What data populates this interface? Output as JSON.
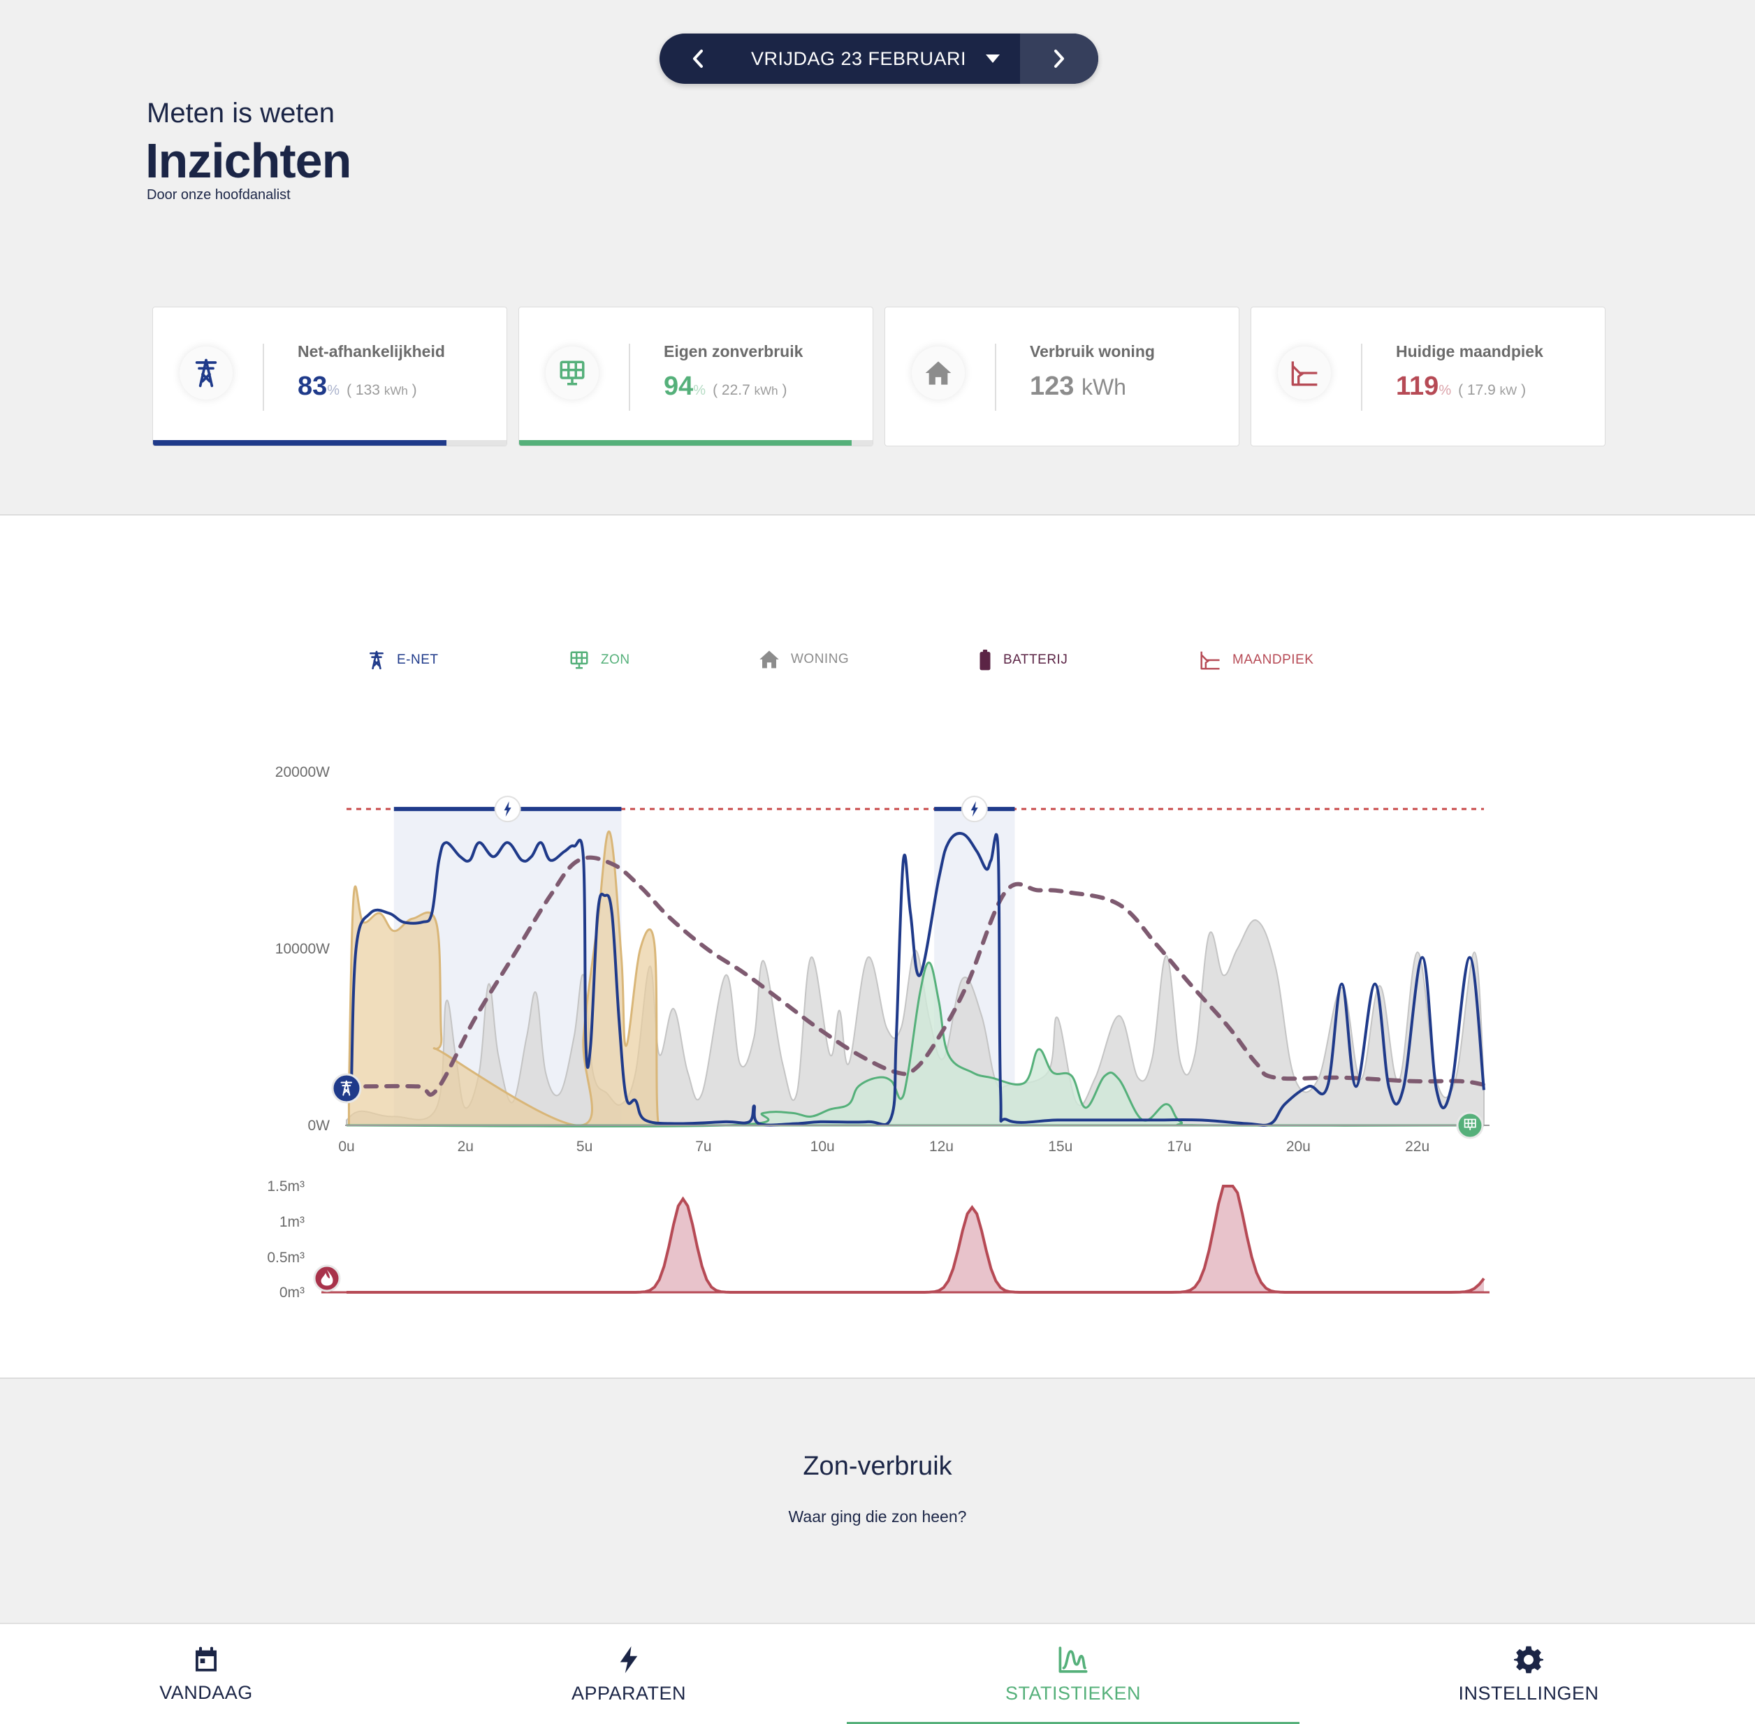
{
  "header": {
    "date_label": "VRIJDAG 23 FEBRUARI",
    "kicker": "Meten is weten",
    "title": "Inzichten",
    "subtitle": "Door onze hoofdanalist"
  },
  "cards": [
    {
      "name": "Net-afhankelijkheid",
      "value": "83",
      "unit": "%",
      "sub_open": "(",
      "sub_value": "133",
      "sub_unit": "kWh",
      "sub_close": ")",
      "progress": 0.83,
      "color": "#1f3a8a",
      "icon": "pylon-icon"
    },
    {
      "name": "Eigen zonverbruik",
      "value": "94",
      "unit": "%",
      "sub_open": "(",
      "sub_value": "22.7",
      "sub_unit": "kWh",
      "sub_close": ")",
      "progress": 0.94,
      "color": "#55b07a",
      "icon": "solar-panel-icon"
    },
    {
      "name": "Verbruik woning",
      "value": "123",
      "unit": "kWh",
      "color": "#8c8c8c",
      "icon": "house-icon"
    },
    {
      "name": "Huidige maandpiek",
      "value": "119",
      "unit": "%",
      "sub_open": "(",
      "sub_value": "17.9",
      "sub_unit": "kW",
      "sub_close": ")",
      "color": "#b64a55",
      "icon": "peak-chart-icon"
    }
  ],
  "legend": [
    {
      "label": "E-NET",
      "color": "#1f3a8a",
      "icon": "pylon-icon"
    },
    {
      "label": "ZON",
      "color": "#55b07a",
      "icon": "solar-panel-icon"
    },
    {
      "label": "WONING",
      "color": "#8c8c8c",
      "icon": "house-icon"
    },
    {
      "label": "BATTERIJ",
      "color": "#5b2445",
      "icon": "battery-icon"
    },
    {
      "label": "MAANDPIEK",
      "color": "#b64a55",
      "icon": "peak-chart-icon"
    }
  ],
  "chart_data": [
    {
      "type": "line",
      "ylabels": [
        "20000W",
        "10000W",
        "0W"
      ],
      "xlabels": [
        "0u",
        "2u",
        "5u",
        "7u",
        "10u",
        "12u",
        "15u",
        "17u",
        "20u",
        "22u"
      ],
      "ylim": [
        0,
        20000
      ],
      "xlim": [
        0,
        24
      ],
      "maandpiek": 17900,
      "peak_windows": [
        [
          1.0,
          5.8
        ],
        [
          12.4,
          14.1
        ]
      ],
      "series": [
        {
          "key": "enet",
          "color": "#1f3a8a",
          "points": [
            [
              0.1,
              2000
            ],
            [
              0.2,
              10000
            ],
            [
              0.5,
              12000
            ],
            [
              0.9,
              12000
            ],
            [
              1.2,
              11500
            ],
            [
              1.6,
              11500
            ],
            [
              1.8,
              12000
            ],
            [
              1.95,
              15000
            ],
            [
              2.1,
              16000
            ],
            [
              2.4,
              15200
            ],
            [
              2.6,
              15000
            ],
            [
              2.8,
              16000
            ],
            [
              3.1,
              15200
            ],
            [
              3.4,
              16000
            ],
            [
              3.7,
              15000
            ],
            [
              3.9,
              15200
            ],
            [
              4.1,
              16000
            ],
            [
              4.3,
              15000
            ],
            [
              4.6,
              15500
            ],
            [
              4.8,
              15800
            ],
            [
              5.0,
              15000
            ],
            [
              5.05,
              4500
            ],
            [
              5.15,
              4500
            ],
            [
              5.3,
              12000
            ],
            [
              5.45,
              13000
            ],
            [
              5.6,
              12000
            ],
            [
              5.75,
              6000
            ],
            [
              5.9,
              1600
            ],
            [
              6.1,
              1400
            ],
            [
              6.3,
              300
            ],
            [
              7.0,
              100
            ],
            [
              8.0,
              200
            ],
            [
              8.5,
              200
            ],
            [
              8.6,
              1100
            ],
            [
              8.7,
              100
            ],
            [
              9.5,
              100
            ],
            [
              10.0,
              200
            ],
            [
              11.0,
              200
            ],
            [
              11.5,
              500
            ],
            [
              11.6,
              5000
            ],
            [
              11.75,
              15000
            ],
            [
              11.9,
              12000
            ],
            [
              12.1,
              8500
            ],
            [
              12.5,
              14000
            ],
            [
              12.7,
              16000
            ],
            [
              13.0,
              16500
            ],
            [
              13.3,
              15500
            ],
            [
              13.5,
              14500
            ],
            [
              13.6,
              15000
            ],
            [
              13.75,
              15500
            ],
            [
              13.8,
              2000
            ],
            [
              13.95,
              300
            ],
            [
              15.0,
              300
            ],
            [
              16.0,
              300
            ],
            [
              17.0,
              300
            ],
            [
              18.0,
              300
            ],
            [
              19.0,
              100
            ],
            [
              19.5,
              100
            ],
            [
              19.8,
              1200
            ],
            [
              20.3,
              2200
            ],
            [
              20.7,
              2200
            ],
            [
              21.0,
              8000
            ],
            [
              21.3,
              2200
            ],
            [
              21.7,
              8000
            ],
            [
              22.0,
              2100
            ],
            [
              22.3,
              2100
            ],
            [
              22.7,
              9500
            ],
            [
              23.0,
              2000
            ],
            [
              23.3,
              2000
            ],
            [
              23.7,
              9500
            ],
            [
              24.0,
              2000
            ]
          ]
        },
        {
          "key": "zon",
          "color": "#55b07a",
          "points": [
            [
              0,
              0
            ],
            [
              8.0,
              0
            ],
            [
              8.8,
              700
            ],
            [
              9.4,
              700
            ],
            [
              9.8,
              500
            ],
            [
              10.2,
              900
            ],
            [
              10.6,
              1200
            ],
            [
              10.8,
              2200
            ],
            [
              11.2,
              2700
            ],
            [
              11.5,
              2500
            ],
            [
              11.7,
              1500
            ],
            [
              11.85,
              3000
            ],
            [
              12.1,
              7500
            ],
            [
              12.3,
              9200
            ],
            [
              12.5,
              7000
            ],
            [
              12.7,
              4000
            ],
            [
              13.2,
              3000
            ],
            [
              13.6,
              2700
            ],
            [
              14.3,
              2400
            ],
            [
              14.6,
              4300
            ],
            [
              14.9,
              3000
            ],
            [
              15.3,
              2800
            ],
            [
              15.6,
              1000
            ],
            [
              16.0,
              2800
            ],
            [
              16.3,
              2600
            ],
            [
              16.8,
              300
            ],
            [
              17.3,
              1200
            ],
            [
              17.6,
              200
            ],
            [
              18.2,
              0
            ],
            [
              24,
              0
            ]
          ]
        },
        {
          "key": "woning",
          "color": "#c8c8c8",
          "points": [
            [
              0,
              300
            ],
            [
              0.3,
              800
            ],
            [
              1.0,
              500
            ],
            [
              1.9,
              1000
            ],
            [
              2.1,
              7000
            ],
            [
              2.3,
              4000
            ],
            [
              2.5,
              1000
            ],
            [
              2.8,
              3000
            ],
            [
              3.0,
              8000
            ],
            [
              3.2,
              4000
            ],
            [
              3.5,
              1300
            ],
            [
              3.8,
              5000
            ],
            [
              4.0,
              7500
            ],
            [
              4.2,
              3000
            ],
            [
              4.5,
              1800
            ],
            [
              4.8,
              5000
            ],
            [
              5.0,
              8500
            ],
            [
              5.2,
              3000
            ],
            [
              5.5,
              1800
            ],
            [
              5.8,
              1200
            ],
            [
              6.1,
              3000
            ],
            [
              6.4,
              9000
            ],
            [
              6.6,
              4000
            ],
            [
              6.9,
              6600
            ],
            [
              7.2,
              3000
            ],
            [
              7.5,
              1800
            ],
            [
              8.0,
              8500
            ],
            [
              8.3,
              3500
            ],
            [
              8.6,
              5000
            ],
            [
              8.8,
              9300
            ],
            [
              9.2,
              3500
            ],
            [
              9.5,
              1800
            ],
            [
              9.8,
              9500
            ],
            [
              10.2,
              4000
            ],
            [
              10.4,
              6500
            ],
            [
              10.6,
              3500
            ],
            [
              11.0,
              9500
            ],
            [
              11.4,
              5500
            ],
            [
              11.7,
              5500
            ],
            [
              12.0,
              9900
            ],
            [
              12.3,
              6000
            ],
            [
              12.6,
              3800
            ],
            [
              13.0,
              8300
            ],
            [
              13.4,
              6200
            ],
            [
              13.7,
              2500
            ],
            [
              14.0,
              2300
            ],
            [
              14.8,
              3000
            ],
            [
              15.0,
              6100
            ],
            [
              15.4,
              1300
            ],
            [
              15.8,
              2700
            ],
            [
              16.3,
              6200
            ],
            [
              16.7,
              2700
            ],
            [
              17.0,
              3800
            ],
            [
              17.3,
              9600
            ],
            [
              17.6,
              3500
            ],
            [
              17.9,
              4000
            ],
            [
              18.2,
              10800
            ],
            [
              18.5,
              8500
            ],
            [
              18.8,
              10000
            ],
            [
              19.2,
              11600
            ],
            [
              19.6,
              9000
            ],
            [
              20.0,
              2700
            ],
            [
              20.5,
              2600
            ],
            [
              21.0,
              7800
            ],
            [
              21.4,
              2600
            ],
            [
              21.8,
              7900
            ],
            [
              22.2,
              2500
            ],
            [
              22.6,
              9800
            ],
            [
              23.0,
              2500
            ],
            [
              23.4,
              2600
            ],
            [
              23.8,
              9800
            ],
            [
              24.0,
              2500
            ]
          ]
        },
        {
          "key": "batterij",
          "color": "#d9b678",
          "points": [
            [
              0.05,
              2000
            ],
            [
              0.15,
              13000
            ],
            [
              0.35,
              11500
            ],
            [
              0.7,
              12000
            ],
            [
              1.0,
              11000
            ],
            [
              1.4,
              11700
            ],
            [
              1.9,
              11400
            ],
            [
              2.0,
              5000
            ],
            [
              2.1,
              4000
            ],
            [
              4.95,
              0
            ],
            [
              5.0,
              5000
            ],
            [
              5.3,
              11500
            ],
            [
              5.55,
              16600
            ],
            [
              5.8,
              9500
            ],
            [
              5.9,
              4500
            ],
            [
              6.2,
              10000
            ],
            [
              6.5,
              10200
            ],
            [
              6.55,
              1500
            ],
            [
              6.6,
              0
            ]
          ]
        },
        {
          "key": "belasting",
          "color": "#7e5a70",
          "dashed": true,
          "points": [
            [
              0.4,
              2200
            ],
            [
              1.5,
              2200
            ],
            [
              1.9,
              2000
            ],
            [
              2.7,
              6000
            ],
            [
              3.5,
              9500
            ],
            [
              4.3,
              13000
            ],
            [
              4.9,
              15000
            ],
            [
              5.6,
              14800
            ],
            [
              6.2,
              13500
            ],
            [
              6.8,
              11800
            ],
            [
              7.6,
              10000
            ],
            [
              8.4,
              8600
            ],
            [
              9.2,
              7000
            ],
            [
              10.0,
              5400
            ],
            [
              10.8,
              4000
            ],
            [
              11.6,
              3000
            ],
            [
              12.0,
              3200
            ],
            [
              12.5,
              5000
            ],
            [
              13.1,
              8000
            ],
            [
              13.9,
              13200
            ],
            [
              14.6,
              13300
            ],
            [
              15.2,
              13200
            ],
            [
              16.3,
              12500
            ],
            [
              17.1,
              10200
            ],
            [
              17.8,
              8000
            ],
            [
              18.6,
              5600
            ],
            [
              19.2,
              3500
            ],
            [
              19.6,
              2700
            ],
            [
              21.0,
              2700
            ],
            [
              22.5,
              2500
            ],
            [
              23.5,
              2500
            ],
            [
              24.0,
              2300
            ]
          ]
        }
      ]
    },
    {
      "type": "area",
      "ylabels": [
        "1.5m³",
        "1m³",
        "0.5m³",
        "0m³"
      ],
      "ylim": [
        0,
        1.5
      ],
      "xlim": [
        0,
        24
      ],
      "series": [
        {
          "key": "gas",
          "color": "#b64a55",
          "fill": "#e8c3cb",
          "peaks": [
            [
              7.1,
              1.32,
              0.25
            ],
            [
              13.2,
              1.2,
              0.25
            ],
            [
              18.55,
              1.33,
              0.27
            ],
            [
              18.85,
              0.55,
              0.25
            ],
            [
              24.3,
              0.4,
              0.25
            ]
          ]
        }
      ]
    }
  ],
  "section": {
    "title": "Zon-verbruik",
    "subtitle": "Waar ging die zon heen?"
  },
  "nav": [
    {
      "label": "VANDAAG",
      "icon": "calendar-icon",
      "active": false
    },
    {
      "label": "APPARATEN",
      "icon": "bolt-icon",
      "active": false
    },
    {
      "label": "STATISTIEKEN",
      "icon": "chart-line-icon",
      "active": true
    },
    {
      "label": "INSTELLINGEN",
      "icon": "gear-icon",
      "active": false
    }
  ]
}
